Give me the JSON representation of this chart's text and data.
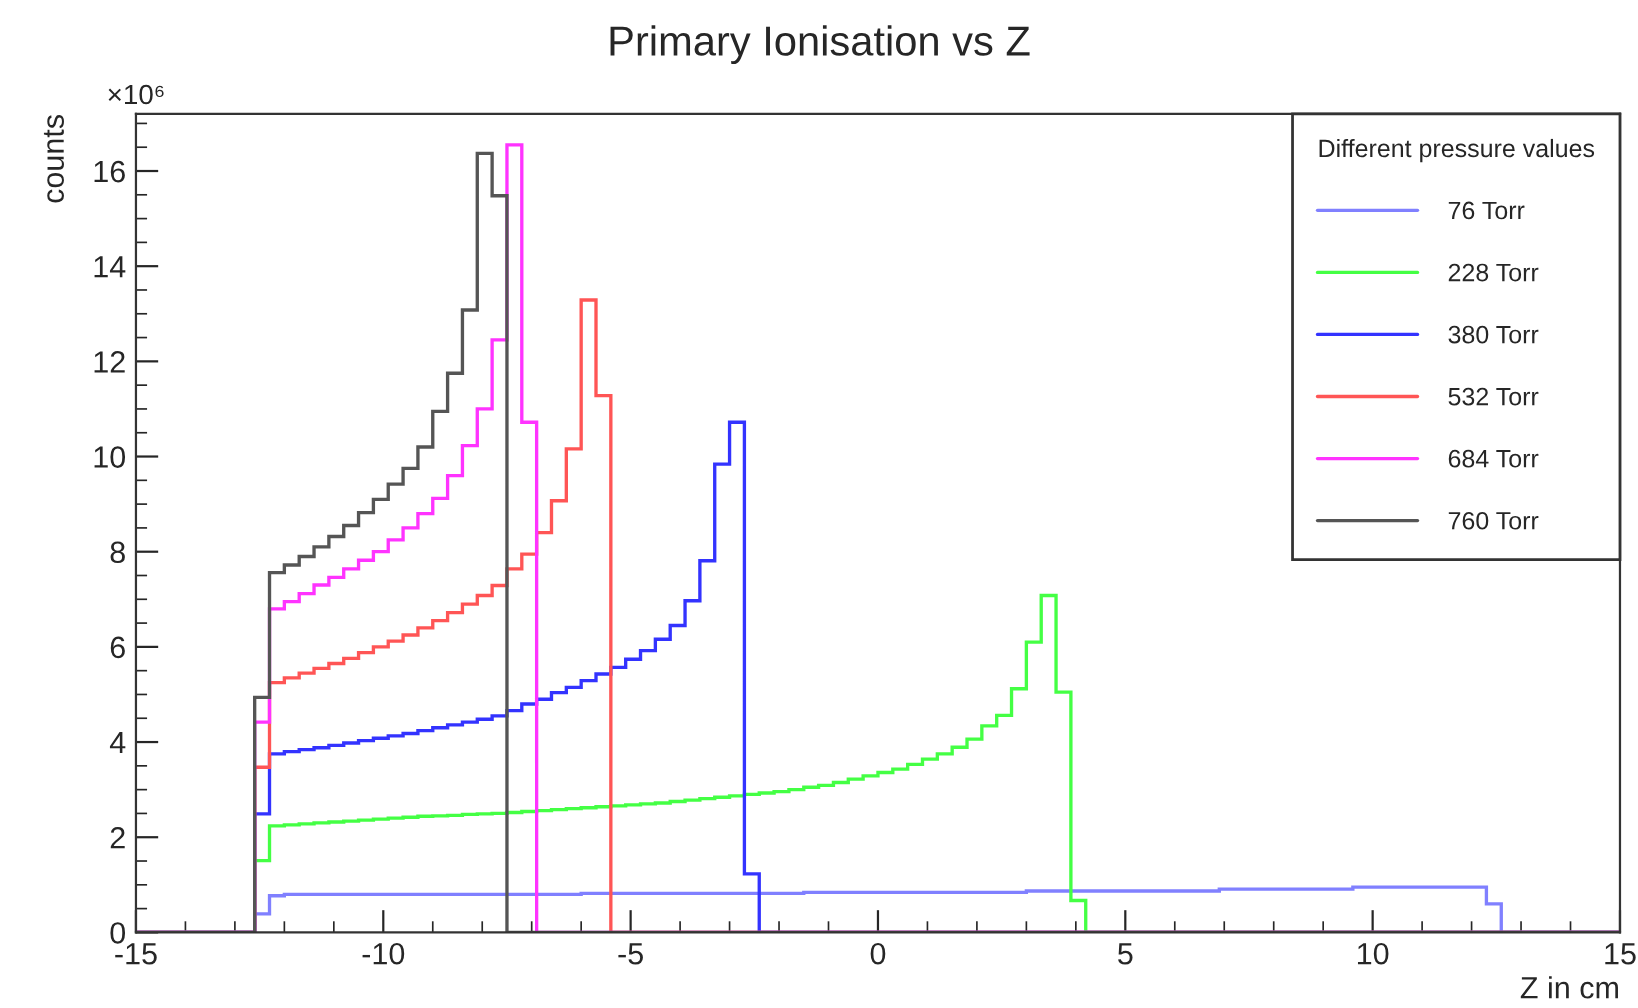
{
  "chart_data": {
    "type": "histogram",
    "title": "Primary Ionisation vs Z",
    "xlabel": "Z in cm",
    "ylabel": "counts",
    "legend_title": "Different pressure values",
    "annotations": [
      "×10⁶"
    ],
    "bins": [
      -15,
      -14.7,
      -14.4,
      -14.1,
      -13.8,
      -13.5,
      -13.2,
      -12.9,
      -12.6,
      -12.3,
      -12,
      -11.7,
      -11.4,
      -11.1,
      -10.8,
      -10.5,
      -10.2,
      -9.9,
      -9.6,
      -9.3,
      -9,
      -8.7,
      -8.4,
      -8.1,
      -7.8,
      -7.5,
      -7.2,
      -6.9,
      -6.6,
      -6.3,
      -6,
      -5.7,
      -5.4,
      -5.1,
      -4.8,
      -4.5,
      -4.2,
      -3.9,
      -3.6,
      -3.3,
      -3,
      -2.7,
      -2.4,
      -2.1,
      -1.8,
      -1.5,
      -1.2,
      -0.9,
      -0.6,
      -0.3,
      0,
      0.3,
      0.6,
      0.9,
      1.2,
      1.5,
      1.8,
      2.1,
      2.4,
      2.7,
      3,
      3.3,
      3.6,
      3.9,
      4.2,
      4.5,
      4.8,
      5.1,
      5.4,
      5.7,
      6,
      6.3,
      6.6,
      6.9,
      7.2,
      7.5,
      7.8,
      8.1,
      8.4,
      8.7,
      9,
      9.3,
      9.6,
      9.9,
      10.2,
      10.5,
      10.8,
      11.1,
      11.4,
      11.7,
      12,
      12.3,
      12.6,
      12.9,
      13.2,
      13.5,
      13.8,
      14.1,
      14.4,
      14.7,
      15
    ],
    "series": [
      {
        "name": "76 Torr",
        "color": "#8080ff",
        "values": [
          0,
          0,
          0,
          0,
          0,
          0,
          0,
          0,
          0.39,
          0.77,
          0.8,
          0.8,
          0.8,
          0.8,
          0.8,
          0.8,
          0.8,
          0.8,
          0.8,
          0.8,
          0.8,
          0.8,
          0.8,
          0.8,
          0.8,
          0.8,
          0.8,
          0.8,
          0.8,
          0.8,
          0.82,
          0.82,
          0.82,
          0.82,
          0.82,
          0.82,
          0.82,
          0.82,
          0.82,
          0.82,
          0.82,
          0.82,
          0.82,
          0.82,
          0.82,
          0.84,
          0.84,
          0.84,
          0.84,
          0.84,
          0.84,
          0.84,
          0.84,
          0.84,
          0.84,
          0.84,
          0.84,
          0.84,
          0.84,
          0.84,
          0.87,
          0.87,
          0.87,
          0.87,
          0.87,
          0.87,
          0.87,
          0.87,
          0.87,
          0.87,
          0.87,
          0.87,
          0.87,
          0.91,
          0.91,
          0.91,
          0.91,
          0.91,
          0.91,
          0.91,
          0.91,
          0.91,
          0.95,
          0.95,
          0.95,
          0.95,
          0.95,
          0.95,
          0.95,
          0.95,
          0.95,
          0.6,
          0,
          0,
          0,
          0,
          0,
          0,
          0,
          0
        ]
      },
      {
        "name": "228 Torr",
        "color": "#44ff44",
        "values": [
          0,
          0,
          0,
          0,
          0,
          0,
          0,
          0,
          1.51,
          2.24,
          2.26,
          2.28,
          2.3,
          2.32,
          2.34,
          2.36,
          2.38,
          2.4,
          2.42,
          2.44,
          2.45,
          2.46,
          2.48,
          2.49,
          2.5,
          2.52,
          2.54,
          2.56,
          2.58,
          2.6,
          2.62,
          2.64,
          2.66,
          2.68,
          2.7,
          2.72,
          2.75,
          2.78,
          2.81,
          2.84,
          2.87,
          2.9,
          2.93,
          2.96,
          3.0,
          3.05,
          3.09,
          3.15,
          3.22,
          3.29,
          3.36,
          3.43,
          3.53,
          3.64,
          3.75,
          3.89,
          4.06,
          4.34,
          4.56,
          5.12,
          6.1,
          7.08,
          5.05,
          0.67,
          0,
          0,
          0,
          0,
          0,
          0,
          0,
          0,
          0,
          0,
          0,
          0,
          0,
          0,
          0,
          0,
          0,
          0,
          0,
          0,
          0,
          0,
          0,
          0,
          0,
          0,
          0,
          0,
          0,
          0,
          0,
          0,
          0,
          0,
          0,
          0
        ]
      },
      {
        "name": "380 Torr",
        "color": "#3333ff",
        "values": [
          0,
          0,
          0,
          0,
          0,
          0,
          0,
          0,
          2.49,
          3.75,
          3.8,
          3.84,
          3.88,
          3.93,
          3.98,
          4.03,
          4.08,
          4.13,
          4.18,
          4.24,
          4.3,
          4.36,
          4.42,
          4.48,
          4.55,
          4.66,
          4.8,
          4.9,
          5.04,
          5.15,
          5.29,
          5.43,
          5.57,
          5.74,
          5.92,
          6.16,
          6.45,
          6.97,
          7.81,
          9.84,
          10.72,
          1.23,
          0,
          0,
          0,
          0,
          0,
          0,
          0,
          0,
          0,
          0,
          0,
          0,
          0,
          0,
          0,
          0,
          0,
          0,
          0,
          0,
          0,
          0,
          0,
          0,
          0,
          0,
          0,
          0,
          0,
          0,
          0,
          0,
          0,
          0,
          0,
          0,
          0,
          0,
          0,
          0,
          0,
          0,
          0,
          0,
          0,
          0,
          0,
          0,
          0,
          0,
          0,
          0,
          0,
          0,
          0,
          0,
          0,
          0
        ]
      },
      {
        "name": "532 Torr",
        "color": "#ff5555",
        "values": [
          0,
          0,
          0,
          0,
          0,
          0,
          0,
          0,
          3.47,
          5.25,
          5.35,
          5.45,
          5.55,
          5.65,
          5.76,
          5.88,
          6.0,
          6.12,
          6.25,
          6.4,
          6.55,
          6.72,
          6.9,
          7.08,
          7.29,
          7.64,
          7.95,
          8.4,
          9.07,
          10.16,
          13.29,
          11.28,
          0,
          0,
          0,
          0,
          0,
          0,
          0,
          0,
          0,
          0,
          0,
          0,
          0,
          0,
          0,
          0,
          0,
          0,
          0,
          0,
          0,
          0,
          0,
          0,
          0,
          0,
          0,
          0,
          0,
          0,
          0,
          0,
          0,
          0,
          0,
          0,
          0,
          0,
          0,
          0,
          0,
          0,
          0,
          0,
          0,
          0,
          0,
          0,
          0,
          0,
          0,
          0,
          0,
          0,
          0,
          0,
          0,
          0,
          0,
          0,
          0,
          0,
          0,
          0,
          0,
          0,
          0,
          0
        ]
      },
      {
        "name": "684 Torr",
        "color": "#ff33ff",
        "values": [
          0,
          0,
          0,
          0,
          0,
          0,
          0,
          0,
          4.42,
          6.8,
          6.95,
          7.12,
          7.3,
          7.46,
          7.64,
          7.82,
          8.0,
          8.25,
          8.5,
          8.8,
          9.12,
          9.6,
          10.23,
          11.0,
          12.45,
          16.55,
          10.72,
          0,
          0,
          0,
          0,
          0,
          0,
          0,
          0,
          0,
          0,
          0,
          0,
          0,
          0,
          0,
          0,
          0,
          0,
          0,
          0,
          0,
          0,
          0,
          0,
          0,
          0,
          0,
          0,
          0,
          0,
          0,
          0,
          0,
          0,
          0,
          0,
          0,
          0,
          0,
          0,
          0,
          0,
          0,
          0,
          0,
          0,
          0,
          0,
          0,
          0,
          0,
          0,
          0,
          0,
          0,
          0,
          0,
          0,
          0,
          0,
          0,
          0,
          0,
          0,
          0,
          0,
          0,
          0,
          0,
          0,
          0,
          0,
          0
        ]
      },
      {
        "name": "760 Torr",
        "color": "#555555",
        "values": [
          0,
          0,
          0,
          0,
          0,
          0,
          0,
          0,
          4.94,
          7.56,
          7.72,
          7.9,
          8.1,
          8.32,
          8.55,
          8.82,
          9.1,
          9.42,
          9.75,
          10.2,
          10.95,
          11.75,
          13.08,
          16.37,
          15.48,
          0,
          0,
          0,
          0,
          0,
          0,
          0,
          0,
          0,
          0,
          0,
          0,
          0,
          0,
          0,
          0,
          0,
          0,
          0,
          0,
          0,
          0,
          0,
          0,
          0,
          0,
          0,
          0,
          0,
          0,
          0,
          0,
          0,
          0,
          0,
          0,
          0,
          0,
          0,
          0,
          0,
          0,
          0,
          0,
          0,
          0,
          0,
          0,
          0,
          0,
          0,
          0,
          0,
          0,
          0,
          0,
          0,
          0,
          0,
          0,
          0,
          0,
          0,
          0,
          0,
          0,
          0,
          0,
          0,
          0,
          0,
          0,
          0,
          0,
          0
        ]
      }
    ],
    "xlim": [
      -15,
      15
    ],
    "xticks": [
      -15,
      -10,
      -5,
      0,
      5,
      10,
      15
    ],
    "ylim": [
      0,
      17.2
    ],
    "yticks": [
      0,
      2,
      4,
      6,
      8,
      10,
      12,
      14,
      16
    ],
    "grid": false,
    "legend": "top right"
  }
}
